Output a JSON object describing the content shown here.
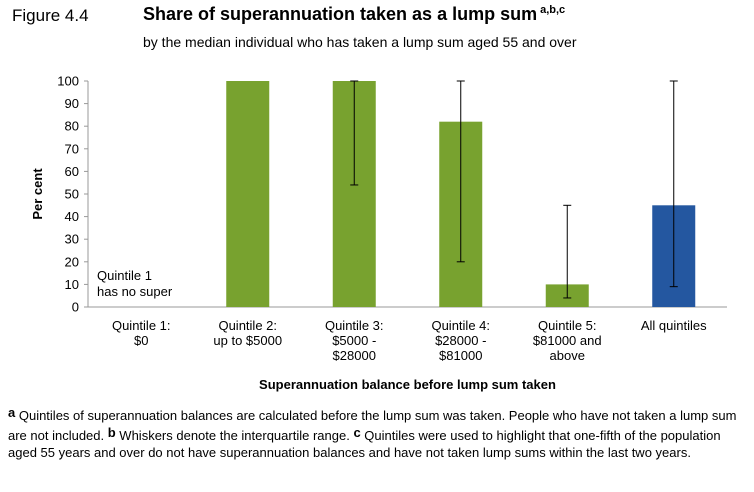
{
  "figure_label": "Figure 4.4",
  "title": "Share of superannuation taken as a lump sum",
  "title_superscript": "a,b,c",
  "subtitle": "by the median individual who has taken a lump sum aged 55 and over",
  "colors": {
    "green": "#78a22f",
    "blue": "#2457a0",
    "whisker": "#000000"
  },
  "chart_data": {
    "type": "bar",
    "xlabel": "Superannuation balance before lump sum taken",
    "ylabel": "Per cent",
    "ylim": [
      0,
      100
    ],
    "yticks": [
      0,
      10,
      20,
      30,
      40,
      50,
      60,
      70,
      80,
      90,
      100
    ],
    "grid": false,
    "categories": [
      [
        "Quintile 1:",
        "$0"
      ],
      [
        "Quintile 2:",
        "up to $5000"
      ],
      [
        "Quintile 3:",
        "$5000 -",
        "$28000"
      ],
      [
        "Quintile 4:",
        "$28000 -",
        "$81000"
      ],
      [
        "Quintile 5:",
        "$81000 and",
        "above"
      ],
      [
        "All quintiles"
      ]
    ],
    "values": [
      null,
      100,
      100,
      82,
      10,
      45
    ],
    "whiskers": [
      null,
      null,
      [
        54,
        100
      ],
      [
        20,
        100
      ],
      [
        4,
        45
      ],
      [
        9,
        100
      ]
    ],
    "bar_colors": [
      "green",
      "green",
      "green",
      "green",
      "green",
      "blue"
    ],
    "annotation": [
      "Quintile 1",
      "has no super"
    ]
  },
  "footnotes": [
    {
      "marker": "a",
      "text": " Quintiles of superannuation balances are calculated before the lump sum was taken. People who have not taken a lump sum are not included. "
    },
    {
      "marker": "b",
      "text": " Whiskers denote the interquartile range. "
    },
    {
      "marker": "c",
      "text": " Quintiles were used to highlight that one-fifth of the population aged 55 years and over do not have superannuation balances and have not taken lump sums within the last two years."
    }
  ]
}
